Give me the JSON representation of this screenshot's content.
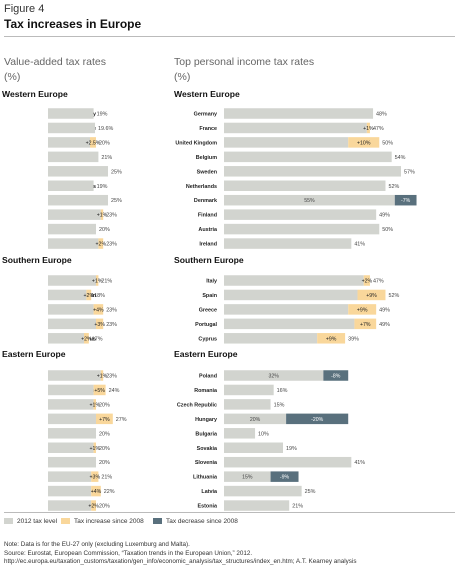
{
  "figure_label": "Figure 4",
  "figure_title": "Tax increases in Europe",
  "colors": {
    "base": "#d2d4cf",
    "increase": "#f9d79b",
    "decrease": "#59707d"
  },
  "chart_data": [
    {
      "type": "bar",
      "title": "Value-added tax rates",
      "unit": "(%)",
      "groups": [
        {
          "name": "Western Europe",
          "rows": [
            {
              "country": "Germany",
              "base": 19,
              "label": "19%"
            },
            {
              "country": "France",
              "base": 19.6,
              "label": "19.6%"
            },
            {
              "country": "United Kingdom",
              "base": 17.5,
              "change": 2.5,
              "change_label": "+2.5%",
              "label": "20%"
            },
            {
              "country": "Belgium",
              "base": 21,
              "label": "21%"
            },
            {
              "country": "Sweden",
              "base": 25,
              "label": "25%"
            },
            {
              "country": "Netherlands",
              "base": 19,
              "label": "19%"
            },
            {
              "country": "Denmark",
              "base": 25,
              "label": "25%"
            },
            {
              "country": "Finland",
              "base": 22,
              "change": 1,
              "change_label": "+1%",
              "label": "23%"
            },
            {
              "country": "Austria",
              "base": 20,
              "label": "20%"
            },
            {
              "country": "Ireland",
              "base": 21,
              "change": 2,
              "change_label": "+2%",
              "label": "23%"
            }
          ]
        },
        {
          "name": "Southern Europe",
          "rows": [
            {
              "country": "Italy",
              "base": 20,
              "change": 1,
              "change_label": "+1%",
              "label": "21%"
            },
            {
              "country": "Spain",
              "base": 16,
              "change": 2,
              "change_label": "+2%",
              "label": "18%"
            },
            {
              "country": "Greece",
              "base": 19,
              "change": 4,
              "change_label": "+4%",
              "label": "23%"
            },
            {
              "country": "Portugal",
              "base": 20,
              "change": 3,
              "change_label": "+3%",
              "label": "23%"
            },
            {
              "country": "Cyprus",
              "base": 15,
              "change": 2,
              "change_label": "+2%",
              "label": "17%"
            }
          ]
        },
        {
          "name": "Eastern Europe",
          "rows": [
            {
              "country": "Poland",
              "base": 22,
              "change": 1,
              "change_label": "+1%",
              "label": "23%"
            },
            {
              "country": "Romania",
              "base": 19,
              "change": 5,
              "change_label": "+5%",
              "label": "24%"
            },
            {
              "country": "Czech Republic",
              "base": 19,
              "change": 1,
              "change_label": "+1%",
              "label": "20%"
            },
            {
              "country": "Hungary",
              "base": 20,
              "change": 7,
              "change_label": "+7%",
              "label": "27%"
            },
            {
              "country": "Bulgaria",
              "base": 20,
              "label": "20%"
            },
            {
              "country": "Sovakia",
              "base": 19,
              "change": 1,
              "change_label": "+1%",
              "label": "20%"
            },
            {
              "country": "Slovenia",
              "base": 20,
              "label": "20%"
            },
            {
              "country": "Lithuania",
              "base": 18,
              "change": 3,
              "change_label": "+3%",
              "label": "21%"
            },
            {
              "country": "Latvia",
              "base": 18,
              "change": 4,
              "change_label": "+4%",
              "label": "22%"
            },
            {
              "country": "Estonia",
              "base": 18,
              "change": 2,
              "change_label": "+2%",
              "label": "20%"
            }
          ]
        }
      ]
    },
    {
      "type": "bar",
      "title": "Top personal income tax rates",
      "unit": "(%)",
      "groups": [
        {
          "name": "Western Europe",
          "rows": [
            {
              "country": "Germany",
              "base": 48,
              "label": "48%"
            },
            {
              "country": "France",
              "base": 46,
              "change": 1,
              "change_label": "+1%",
              "label": "47%"
            },
            {
              "country": "United Kingdom",
              "base": 40,
              "change": 10,
              "change_label": "+10%",
              "label": "50%"
            },
            {
              "country": "Belgium",
              "base": 54,
              "label": "54%"
            },
            {
              "country": "Sweden",
              "base": 57,
              "label": "57%"
            },
            {
              "country": "Netherlands",
              "base": 52,
              "label": "52%"
            },
            {
              "country": "Denmark",
              "base": 55,
              "change": -7,
              "change_label": "-7%",
              "base_label": "55%"
            },
            {
              "country": "Finland",
              "base": 49,
              "label": "49%"
            },
            {
              "country": "Austria",
              "base": 50,
              "label": "50%"
            },
            {
              "country": "Ireland",
              "base": 41,
              "label": "41%"
            }
          ]
        },
        {
          "name": "Southern Europe",
          "rows": [
            {
              "country": "Italy",
              "base": 45,
              "change": 2,
              "change_label": "+2%",
              "label": "47%"
            },
            {
              "country": "Spain",
              "base": 43,
              "change": 9,
              "change_label": "+9%",
              "label": "52%"
            },
            {
              "country": "Greece",
              "base": 40,
              "change": 9,
              "change_label": "+9%",
              "label": "49%"
            },
            {
              "country": "Portugal",
              "base": 42,
              "change": 7,
              "change_label": "+7%",
              "label": "49%"
            },
            {
              "country": "Cyprus",
              "base": 30,
              "change": 9,
              "change_label": "+9%",
              "label": "39%"
            }
          ]
        },
        {
          "name": "Eastern Europe",
          "rows": [
            {
              "country": "Poland",
              "base": 32,
              "change": -8,
              "change_label": "-8%",
              "base_label": "32%"
            },
            {
              "country": "Romania",
              "base": 16,
              "label": "16%"
            },
            {
              "country": "Czech Republic",
              "base": 15,
              "label": "15%"
            },
            {
              "country": "Hungary",
              "base": 20,
              "change": -20,
              "change_label": "-20%",
              "base_label": "20%"
            },
            {
              "country": "Bulgaria",
              "base": 10,
              "label": "10%"
            },
            {
              "country": "Sovakia",
              "base": 19,
              "label": "19%"
            },
            {
              "country": "Slovenia",
              "base": 41,
              "label": "41%"
            },
            {
              "country": "Lithuania",
              "base": 15,
              "change": -9,
              "change_label": "-9%",
              "base_label": "15%"
            },
            {
              "country": "Latvia",
              "base": 25,
              "label": "25%"
            },
            {
              "country": "Estonia",
              "base": 21,
              "label": "21%"
            }
          ]
        }
      ]
    }
  ],
  "legend": {
    "base": "2012 tax level",
    "increase": "Tax increase since 2008",
    "decrease": "Tax decrease since 2008"
  },
  "notes": {
    "note": "Note: Data is for the EU-27 only (excluding Luxemburg and Malta).",
    "source": "Source: Eurostat, European Commission, “Taxation trends in the European Union,” 2012.",
    "url": "http://ec.europa.eu/taxation_customs/taxation/gen_info/economic_analysis/tax_structures/index_en.htm;  A.T. Kearney analysis"
  }
}
